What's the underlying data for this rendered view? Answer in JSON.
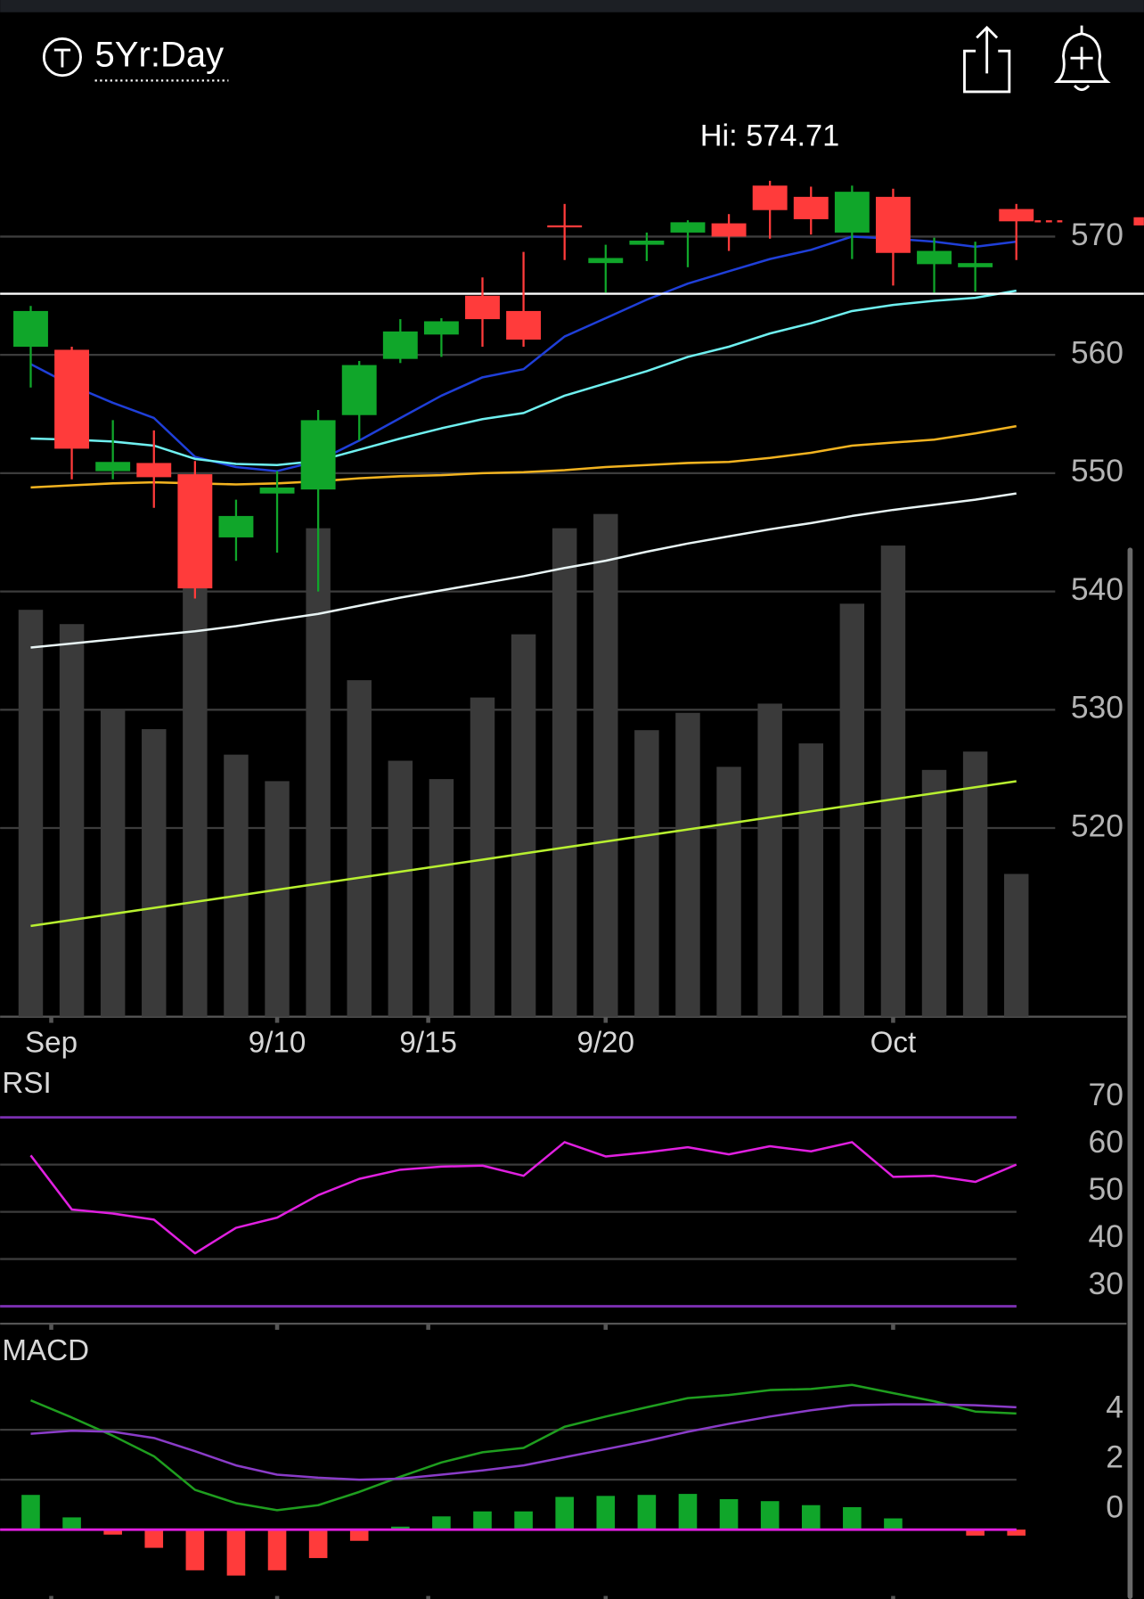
{
  "header": {
    "period": "5Yr:Day"
  },
  "chart_data": [
    {
      "type": "candlestick",
      "annotation": "Hi: 574.71",
      "x": [
        0,
        1,
        2,
        3,
        4,
        5,
        6,
        7,
        8,
        9,
        10,
        11,
        12,
        13,
        14,
        15,
        16,
        17,
        18,
        19,
        20,
        21,
        22,
        23,
        24
      ],
      "open": [
        560.69,
        560.43,
        550.17,
        550.86,
        549.91,
        544.57,
        548.28,
        548.62,
        554.91,
        559.66,
        561.72,
        565.0,
        563.71,
        570.95,
        567.76,
        569.31,
        570.34,
        571.12,
        574.31,
        573.36,
        570.34,
        573.36,
        567.67,
        567.41,
        572.33
      ],
      "high": [
        564.14,
        560.69,
        554.48,
        553.62,
        551.03,
        547.76,
        550.17,
        555.34,
        559.48,
        563.02,
        563.1,
        566.55,
        568.71,
        572.76,
        569.31,
        570.34,
        571.38,
        571.9,
        574.71,
        574.22,
        574.31,
        574.05,
        569.91,
        569.57,
        572.76
      ],
      "low": [
        557.24,
        549.48,
        549.48,
        547.07,
        539.4,
        542.59,
        543.28,
        540.0,
        552.76,
        559.31,
        559.83,
        560.69,
        560.69,
        568.02,
        565.26,
        567.93,
        567.41,
        568.79,
        569.83,
        570.17,
        568.1,
        565.86,
        565.26,
        565.34,
        568.02
      ],
      "close": [
        563.71,
        552.07,
        550.95,
        549.66,
        540.26,
        546.38,
        548.79,
        554.48,
        559.14,
        561.98,
        562.84,
        563.02,
        561.29,
        570.78,
        568.19,
        569.66,
        571.21,
        570.0,
        572.24,
        571.47,
        573.79,
        568.62,
        568.79,
        567.76,
        571.29
      ],
      "volume": [
        399,
        385,
        301,
        282,
        422,
        257,
        231,
        479,
        330,
        251,
        233,
        313,
        375,
        479,
        493,
        281,
        298,
        245,
        307,
        268,
        405,
        462,
        242,
        260,
        140
      ],
      "vlim": [
        0,
        500
      ],
      "volume_color": "#3a3a3a",
      "up_color": "#10a62a",
      "down_color": "#ff3b3b",
      "series": [
        {
          "color": "#1f3fd8",
          "values": [
            559.22,
            557.41,
            555.95,
            554.66,
            551.38,
            550.52,
            550.17,
            551.03,
            552.76,
            554.66,
            556.55,
            558.1,
            558.79,
            561.55,
            563.1,
            564.66,
            566.03,
            567.07,
            568.1,
            568.88,
            570.0,
            569.83,
            569.57,
            569.14,
            569.57
          ]
        },
        {
          "color": "#6ff0f0",
          "values": [
            552.93,
            552.84,
            552.67,
            552.33,
            551.21,
            550.78,
            550.69,
            551.03,
            551.98,
            552.93,
            553.79,
            554.57,
            555.09,
            556.55,
            557.59,
            558.62,
            559.83,
            560.69,
            561.81,
            562.67,
            563.71,
            564.22,
            564.57,
            564.83,
            565.43
          ]
        },
        {
          "color": "#f2b320",
          "values": [
            548.79,
            548.97,
            549.14,
            549.22,
            549.14,
            549.05,
            549.14,
            549.31,
            549.57,
            549.74,
            549.83,
            550.0,
            550.09,
            550.26,
            550.52,
            550.69,
            550.86,
            550.95,
            551.29,
            551.72,
            552.33,
            552.59,
            552.84,
            553.36,
            553.97
          ]
        },
        {
          "color": "#e8f4f4",
          "values": [
            535.26,
            535.6,
            535.95,
            536.29,
            536.64,
            537.07,
            537.59,
            538.1,
            538.79,
            539.48,
            540.09,
            540.69,
            541.29,
            541.98,
            542.59,
            543.36,
            544.05,
            544.66,
            545.26,
            545.78,
            546.38,
            546.9,
            547.33,
            547.76,
            548.28
          ]
        },
        {
          "color": "#b8f030",
          "values": [
            511.72,
            512.23,
            512.74,
            513.25,
            513.76,
            514.27,
            514.78,
            515.29,
            515.8,
            516.31,
            516.82,
            517.33,
            517.84,
            518.35,
            518.86,
            519.37,
            519.88,
            520.39,
            520.9,
            521.41,
            521.92,
            522.43,
            522.94,
            523.45,
            523.96
          ]
        }
      ],
      "reference_line": 565.17,
      "reference_color": "#ffffff",
      "xlim": [
        -0.745,
        25.07
      ],
      "xticks": [
        {
          "value": 0.5,
          "label": "Sep"
        },
        {
          "value": 6,
          "label": "9/10"
        },
        {
          "value": 9.68,
          "label": "9/15"
        },
        {
          "value": 14,
          "label": "9/20"
        },
        {
          "value": 21,
          "label": "Oct"
        }
      ],
      "ylim": [
        504.05,
        581.38
      ],
      "yticks": [
        520,
        530,
        540,
        550,
        560,
        570
      ],
      "grid": true
    },
    {
      "type": "line",
      "title": "RSI",
      "color": "#e020e0",
      "values": [
        61.94,
        50.5,
        49.63,
        48.34,
        41.21,
        46.61,
        48.77,
        53.52,
        56.98,
        58.92,
        59.57,
        59.78,
        57.62,
        64.75,
        61.73,
        62.59,
        63.67,
        62.16,
        63.89,
        62.81,
        64.75,
        57.41,
        57.62,
        56.33,
        60.0
      ],
      "bands": [
        30,
        70
      ],
      "band_color": "#7a2fb0",
      "ylim": [
        26.31,
        79.87
      ],
      "yticks": [
        30,
        40,
        50,
        60,
        70
      ],
      "grid": true
    },
    {
      "type": "macd",
      "title": "MACD",
      "series": [
        {
          "color": "#1f9e1f",
          "values": [
            5.18,
            4.49,
            3.76,
            2.94,
            1.59,
            1.06,
            0.78,
            0.98,
            1.51,
            2.12,
            2.69,
            3.1,
            3.27,
            4.12,
            4.53,
            4.9,
            5.27,
            5.39,
            5.59,
            5.63,
            5.8,
            5.47,
            5.14,
            4.73,
            4.65
          ]
        },
        {
          "color": "#8a3cc8",
          "values": [
            3.84,
            3.96,
            3.92,
            3.67,
            3.14,
            2.57,
            2.2,
            2.08,
            2.0,
            2.04,
            2.2,
            2.37,
            2.57,
            2.9,
            3.22,
            3.55,
            3.92,
            4.24,
            4.53,
            4.78,
            4.98,
            5.02,
            5.02,
            4.98,
            4.9
          ]
        }
      ],
      "histogram": [
        1.39,
        0.49,
        -0.2,
        -0.73,
        -1.63,
        -1.84,
        -1.63,
        -1.14,
        -0.45,
        0.12,
        0.53,
        0.73,
        0.73,
        1.31,
        1.35,
        1.39,
        1.43,
        1.22,
        1.14,
        0.98,
        0.9,
        0.45,
        0.04,
        -0.24,
        -0.24
      ],
      "up_color": "#10a62a",
      "down_color": "#ff3b3b",
      "zero_line_color": "#e020e0",
      "ylim": [
        -2.78,
        7.76
      ],
      "yticks": [
        0,
        2,
        4
      ],
      "grid": true
    }
  ]
}
